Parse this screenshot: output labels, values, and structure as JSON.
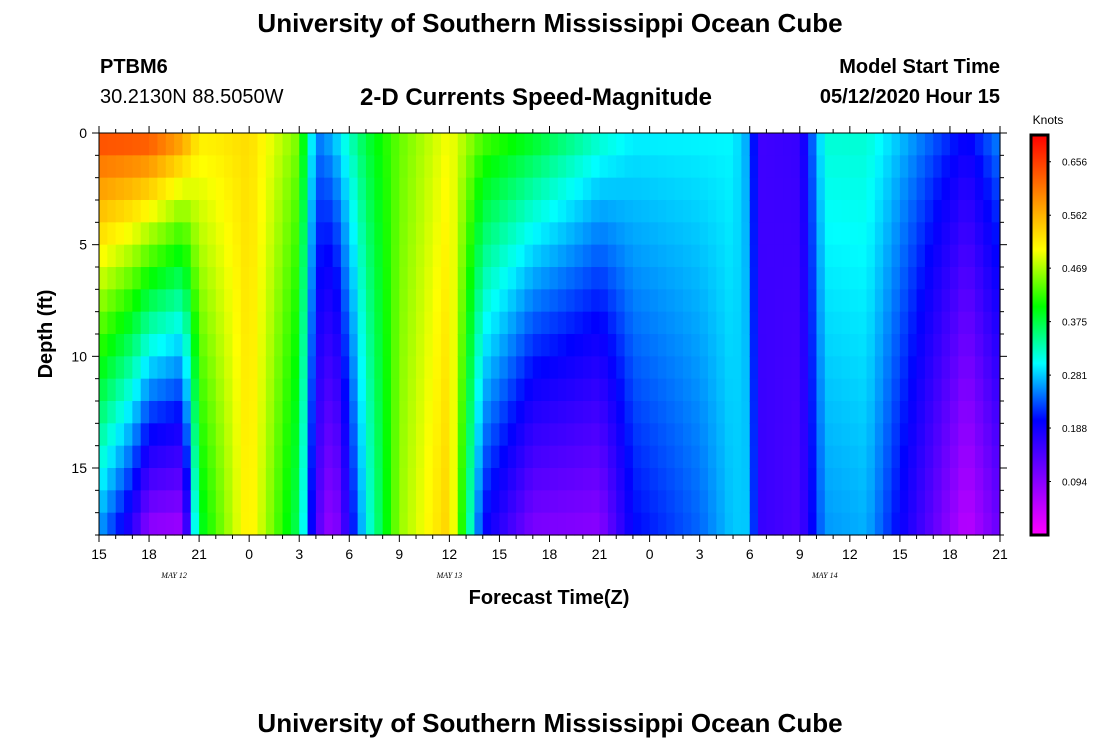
{
  "header": {
    "title": "University of Southern Mississippi Ocean Cube",
    "station_id": "PTBM6",
    "coordinates": "30.2130N 88.5050W",
    "product": "2-D Currents Speed-Magnitude",
    "model_start_label": "Model Start Time",
    "model_start_value": "05/12/2020 Hour 15"
  },
  "footer": {
    "title": "University of Southern Mississippi Ocean Cube"
  },
  "colors": {
    "scale": [
      "#ff00ff",
      "#8000ff",
      "#0000ff",
      "#00ffff",
      "#00ff00",
      "#ffff00",
      "#ff8000",
      "#ff0000"
    ]
  },
  "chart_data": {
    "type": "heatmap",
    "title": "2-D Currents Speed-Magnitude",
    "xlabel": "Forecast Time(Z)",
    "ylabel": "Depth (ft)",
    "units": "Knots",
    "x_range_hours": [
      0,
      54
    ],
    "y_range_ft": [
      0,
      18
    ],
    "y_inverted": true,
    "x_ticks": [
      "15",
      "18",
      "21",
      "0",
      "3",
      "6",
      "9",
      "12",
      "15",
      "18",
      "21",
      "0",
      "3",
      "6",
      "9",
      "12",
      "15",
      "18",
      "21"
    ],
    "y_ticks": [
      0,
      5,
      10,
      15
    ],
    "date_labels": [
      {
        "text": "MAY 12",
        "hour": 4.5
      },
      {
        "text": "MAY 13",
        "hour": 21
      },
      {
        "text": "MAY 14",
        "hour": 43.5
      }
    ],
    "colorbar": {
      "min": 0.0,
      "max": 0.703,
      "labels": [
        "0.656",
        "0.562",
        "0.469",
        "0.375",
        "0.281",
        "0.188",
        "0.094"
      ],
      "label_values": [
        0.656,
        0.562,
        0.469,
        0.375,
        0.281,
        0.188,
        0.094
      ]
    },
    "time_step_hours": 0.5,
    "depths_ft": [
      0,
      1,
      2,
      3,
      4,
      5,
      6,
      7,
      8,
      9,
      10,
      11,
      12,
      13,
      14,
      15,
      16,
      17,
      18
    ],
    "time_keys": [
      {
        "hour": 0,
        "surface": 0.66,
        "bottom": 0.26
      },
      {
        "hour": 2,
        "surface": 0.66,
        "bottom": 0.16
      },
      {
        "hour": 3,
        "surface": 0.66,
        "bottom": 0.08
      },
      {
        "hour": 5,
        "surface": 0.6,
        "bottom": 0.07
      },
      {
        "hour": 6,
        "surface": 0.52,
        "bottom": 0.38
      },
      {
        "hour": 7,
        "surface": 0.52,
        "bottom": 0.43
      },
      {
        "hour": 9,
        "surface": 0.53,
        "bottom": 0.52
      },
      {
        "hour": 12,
        "surface": 0.45,
        "bottom": 0.36
      },
      {
        "hour": 13,
        "surface": 0.25,
        "bottom": 0.14
      },
      {
        "hour": 14,
        "surface": 0.28,
        "bottom": 0.07
      },
      {
        "hour": 15,
        "surface": 0.33,
        "bottom": 0.18
      },
      {
        "hour": 16,
        "surface": 0.38,
        "bottom": 0.3
      },
      {
        "hour": 18,
        "surface": 0.44,
        "bottom": 0.46
      },
      {
        "hour": 21,
        "surface": 0.5,
        "bottom": 0.54
      },
      {
        "hour": 23,
        "surface": 0.44,
        "bottom": 0.2
      },
      {
        "hour": 26,
        "surface": 0.4,
        "bottom": 0.1
      },
      {
        "hour": 30,
        "surface": 0.33,
        "bottom": 0.09
      },
      {
        "hour": 32,
        "surface": 0.3,
        "bottom": 0.2
      },
      {
        "hour": 36,
        "surface": 0.3,
        "bottom": 0.24
      },
      {
        "hour": 38,
        "surface": 0.3,
        "bottom": 0.28
      },
      {
        "hour": 39,
        "surface": 0.26,
        "bottom": 0.28
      },
      {
        "hour": 39.5,
        "surface": 0.15,
        "bottom": 0.16
      },
      {
        "hour": 42,
        "surface": 0.16,
        "bottom": 0.14
      },
      {
        "hour": 43.5,
        "surface": 0.32,
        "bottom": 0.26
      },
      {
        "hour": 46,
        "surface": 0.32,
        "bottom": 0.27
      },
      {
        "hour": 49,
        "surface": 0.26,
        "bottom": 0.16
      },
      {
        "hour": 52,
        "surface": 0.2,
        "bottom": 0.05
      },
      {
        "hour": 54,
        "surface": 0.26,
        "bottom": 0.12
      }
    ]
  }
}
